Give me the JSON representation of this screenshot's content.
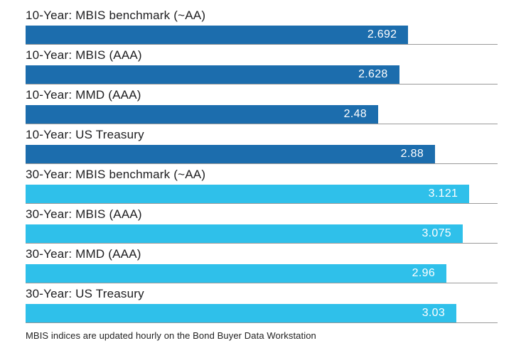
{
  "chart_data": {
    "type": "bar",
    "orientation": "horizontal",
    "title": "",
    "xlabel": "",
    "ylabel": "",
    "xlim": [
      0,
      3.32
    ],
    "grid": "baseline-per-bar",
    "legend": "none",
    "categories": [
      "10-Year: MBIS benchmark (~AA)",
      "10-Year: MBIS (AAA)",
      "10-Year: MMD (AAA)",
      "10-Year: US Treasury",
      "30-Year: MBIS benchmark (~AA)",
      "30-Year: MBIS (AAA)",
      "30-Year: MMD (AAA)",
      "30-Year: US Treasury"
    ],
    "values": [
      2.692,
      2.628,
      2.48,
      2.88,
      3.121,
      3.075,
      2.96,
      3.03
    ],
    "value_labels": [
      "2.692",
      "2.628",
      "2.48",
      "2.88",
      "3.121",
      "3.075",
      "2.96",
      "3.03"
    ],
    "bar_colors": [
      "#1c6dad",
      "#1c6dad",
      "#1c6dad",
      "#1c6dad",
      "#2fc0ea",
      "#2fc0ea",
      "#2fc0ea",
      "#2fc0ea"
    ],
    "footer": "MBIS indices are updated hourly on the Bond Buyer Data Workstation"
  },
  "colors": {
    "dark_blue": "#1c6dad",
    "light_blue": "#2fc0ea",
    "value_text": "#ffffff",
    "label_text": "#1d1d1f",
    "gridline": "#9a9a9a"
  }
}
